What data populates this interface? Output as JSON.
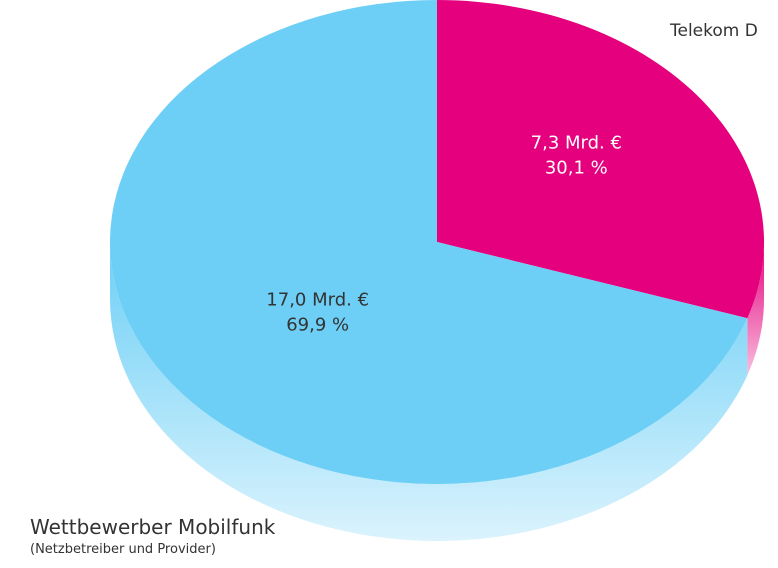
{
  "chart_data": {
    "type": "pie",
    "categories": [
      "Telekom D",
      "Wettbewerber Mobilfunk"
    ],
    "values": [
      30.1,
      69.9
    ],
    "value_labels": [
      "30,1 %",
      "69,9 %"
    ],
    "amounts": [
      7.3,
      17.0
    ],
    "amount_labels": [
      "7,3 Mrd. €",
      "17,0 Mrd. €"
    ],
    "colors": [
      "#e5007d",
      "#6dcff6"
    ],
    "annotations": [
      null,
      "(Netzbetreiber und Provider)"
    ]
  }
}
